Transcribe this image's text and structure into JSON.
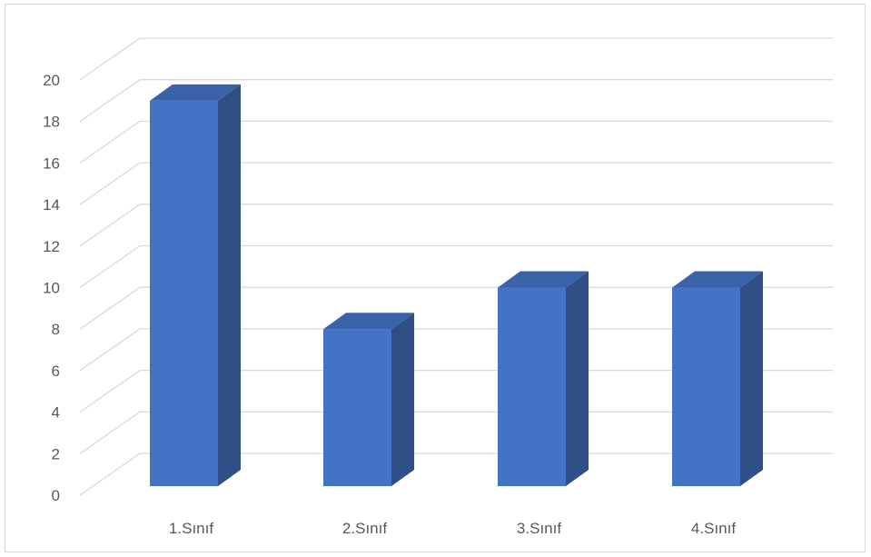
{
  "chart_data": {
    "type": "bar",
    "style": "3d-column",
    "categories": [
      "1.Sınıf",
      "2.Sınıf",
      "3.Sınıf",
      "4.Sınıf"
    ],
    "values": [
      19,
      8,
      10,
      10
    ],
    "ylim": [
      0,
      20
    ],
    "ytick_step": 2,
    "yticks": [
      "0",
      "2",
      "4",
      "6",
      "8",
      "10",
      "12",
      "14",
      "16",
      "18",
      "20"
    ],
    "grid": true,
    "legend": "none",
    "colors": {
      "bar_front": "#4472c4",
      "bar_side": "#2f4f86",
      "bar_top": "#3a62a8",
      "gridline": "#d9d9d9",
      "tick_text": "#595959"
    }
  }
}
